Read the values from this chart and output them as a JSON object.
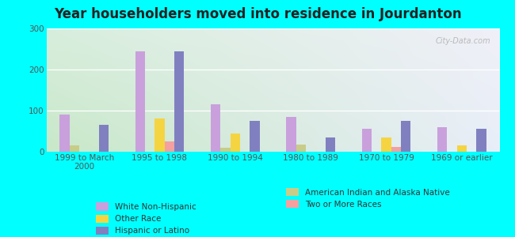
{
  "title": "Year householders moved into residence in Jourdanton",
  "categories": [
    "1999 to March\n2000",
    "1995 to 1998",
    "1990 to 1994",
    "1980 to 1989",
    "1970 to 1979",
    "1969 or earlier"
  ],
  "series": [
    {
      "name": "White Non-Hispanic",
      "values": [
        90,
        245,
        115,
        85,
        55,
        60
      ],
      "color": "#c9a0dc"
    },
    {
      "name": "American Indian and Alaska Native",
      "values": [
        15,
        0,
        10,
        18,
        0,
        0
      ],
      "color": "#c8cc88"
    },
    {
      "name": "Other Race",
      "values": [
        0,
        80,
        45,
        0,
        35,
        15
      ],
      "color": "#f5d442"
    },
    {
      "name": "Two or More Races",
      "values": [
        0,
        25,
        0,
        0,
        12,
        0
      ],
      "color": "#f4a0a0"
    },
    {
      "name": "Hispanic or Latino",
      "values": [
        65,
        245,
        75,
        35,
        75,
        55
      ],
      "color": "#8080c0"
    }
  ],
  "ylim": [
    0,
    300
  ],
  "yticks": [
    0,
    100,
    200,
    300
  ],
  "bg_color": "#00ffff",
  "plot_bg_topleft": "#d8eedd",
  "plot_bg_topright": "#f0f0f8",
  "plot_bg_botleft": "#c8e8c8",
  "plot_bg_botright": "#e8eef8",
  "watermark": "City-Data.com",
  "bar_width": 0.13,
  "title_fontsize": 12,
  "tick_fontsize": 7.5,
  "legend_fontsize": 7.5
}
